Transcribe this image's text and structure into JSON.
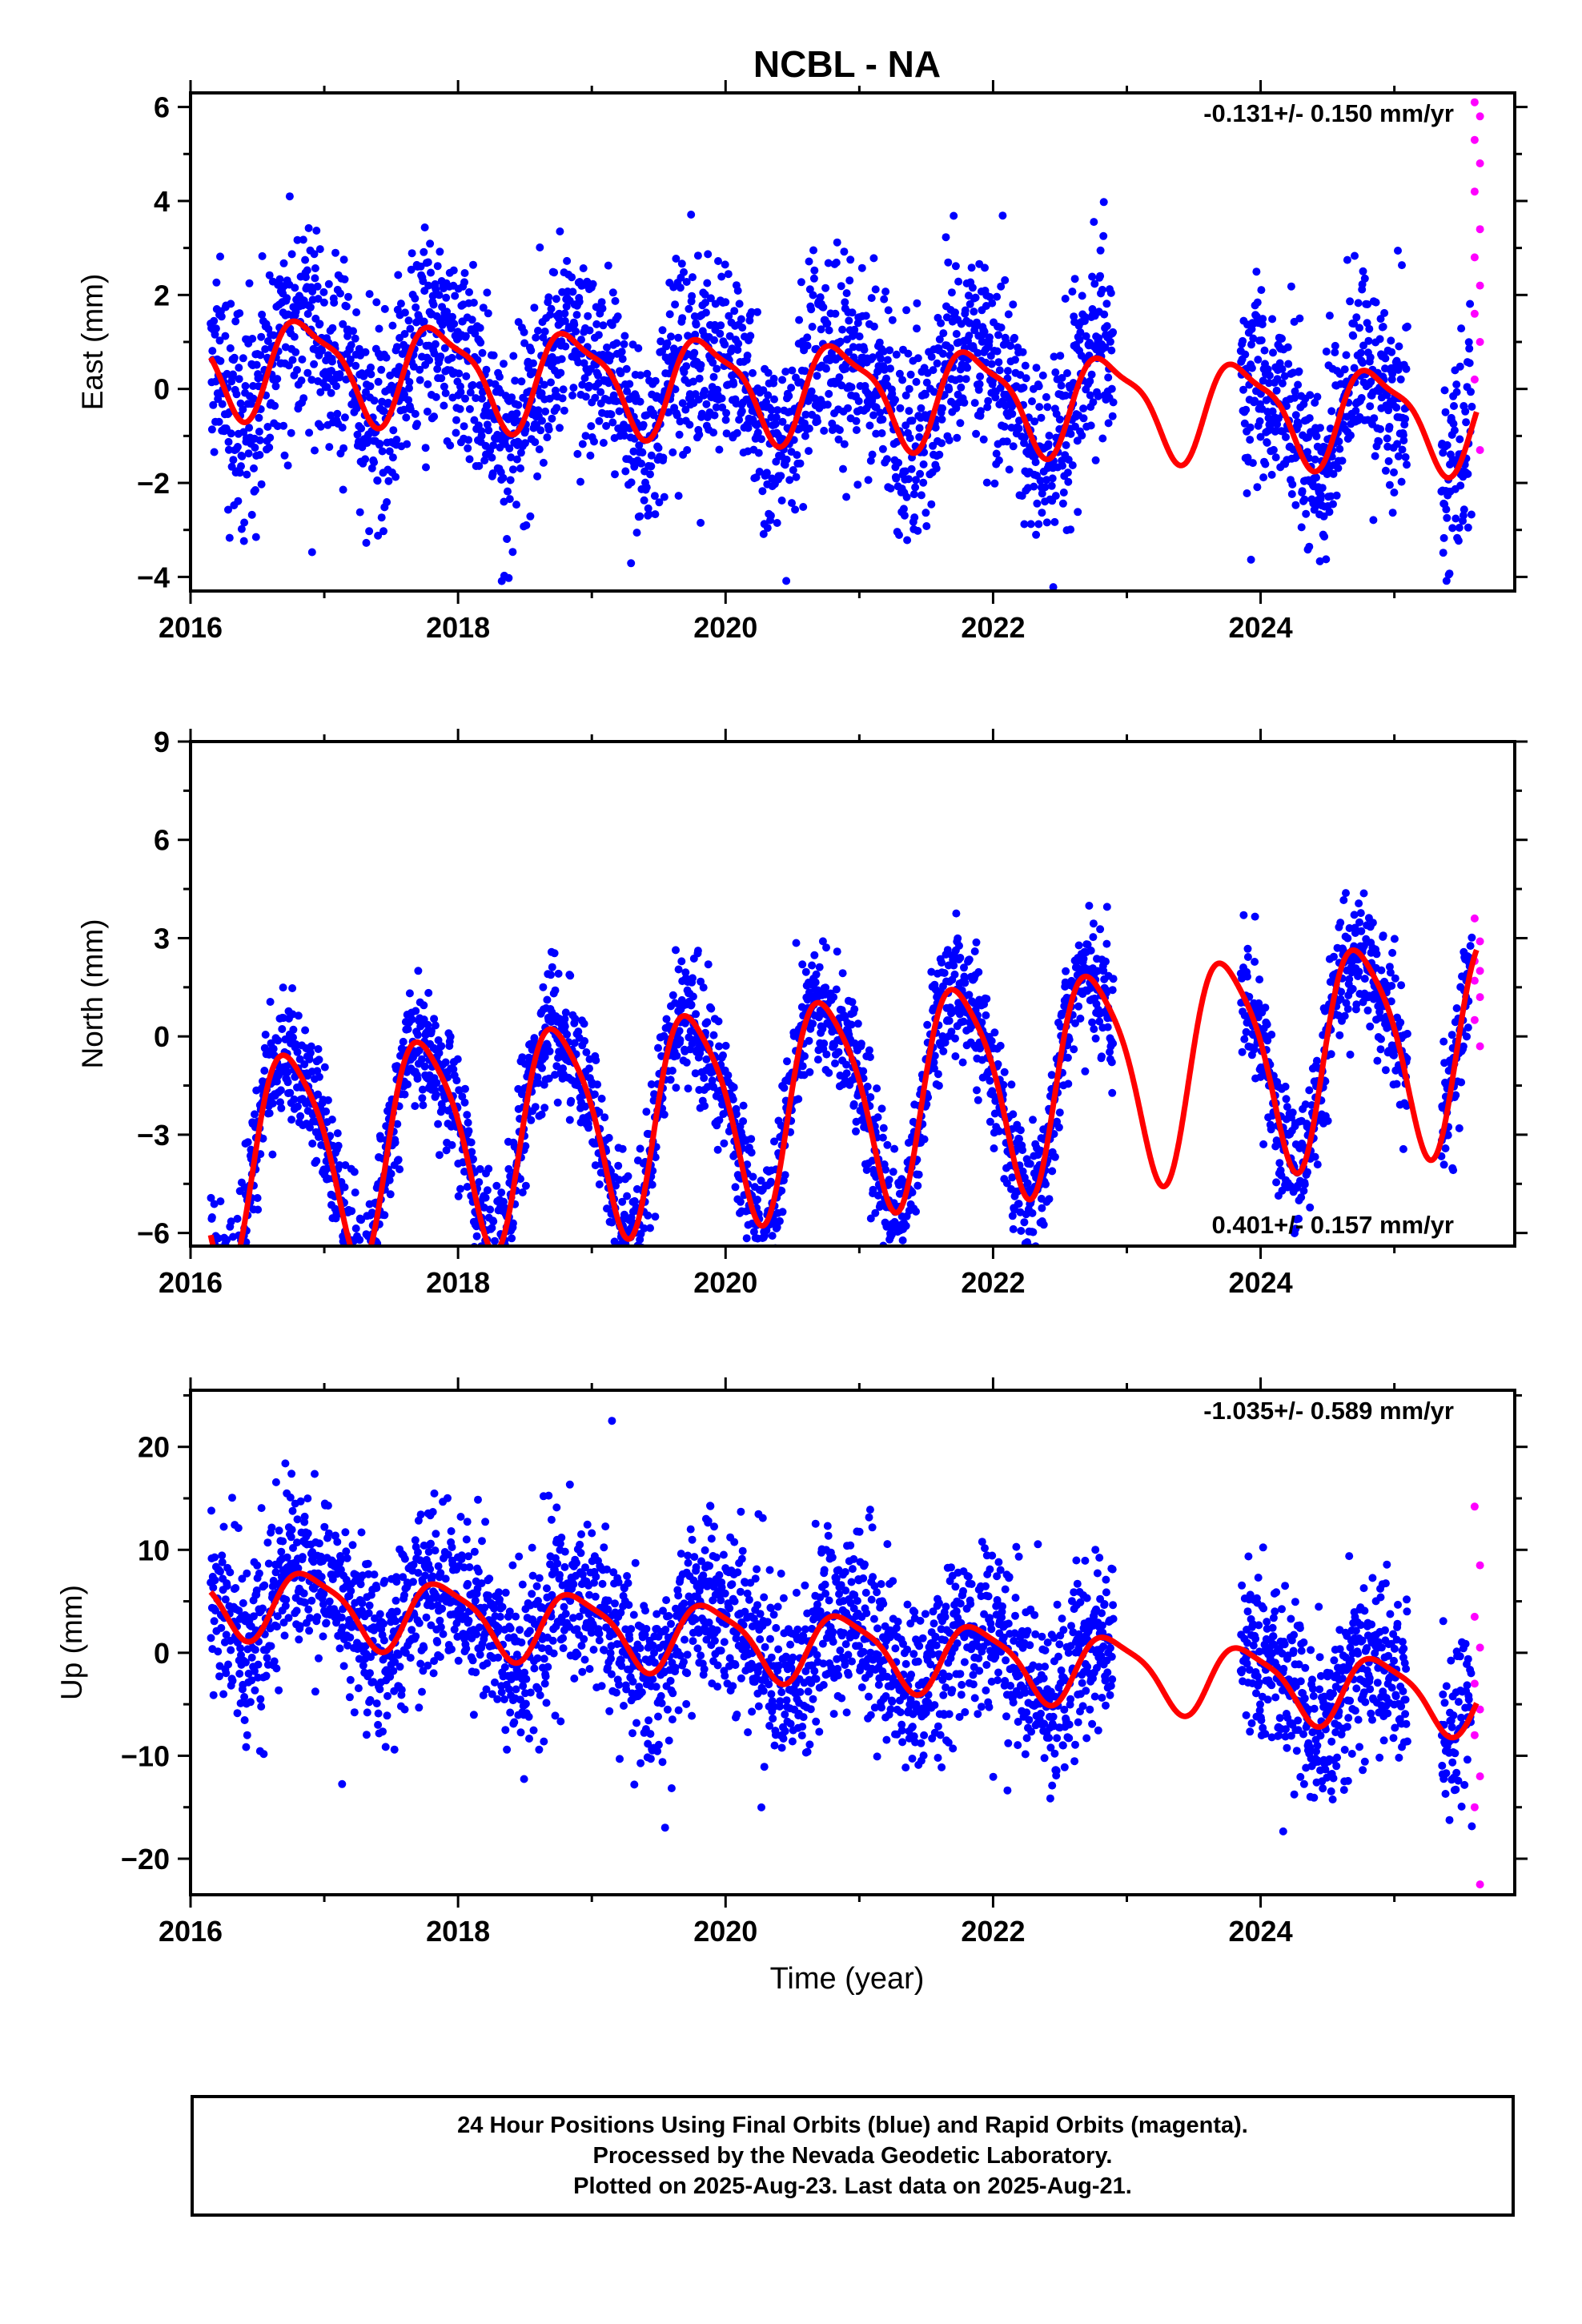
{
  "title": "NCBL - NA",
  "xlabel": "Time (year)",
  "caption": [
    "24 Hour Positions Using Final Orbits (blue) and Rapid Orbits (magenta).",
    "Processed by the Nevada Geodetic Laboratory.",
    "Plotted on 2025-Aug-23. Last data on 2025-Aug-21."
  ],
  "colors": {
    "final_orbits": "#0000ff",
    "rapid_orbits": "#ff00ff",
    "model_fit": "#ff0000",
    "frame": "#000000"
  },
  "chart_data": [
    {
      "type": "scatter",
      "title": "NCBL - NA",
      "ylabel": "East (mm)",
      "xlabel": "",
      "xlim": [
        2016.0,
        2025.9
      ],
      "ylim": [
        -4.3,
        6.3
      ],
      "xticks": [
        "2016",
        "2018",
        "2020",
        "2022",
        "2024"
      ],
      "yticks": [
        "−4",
        "−2",
        "0",
        "2",
        "4",
        "6"
      ],
      "ytick_values": [
        -4,
        -2,
        0,
        2,
        4,
        6
      ],
      "annotation": "-0.131+/- 0.150 mm/yr",
      "annotation_position": "top-right",
      "model": {
        "rate": -0.131,
        "offset": 0.6,
        "amplitude": 1.0,
        "phase": 0.62,
        "amp2": 0.3,
        "noise": 1.05
      },
      "series": [
        {
          "name": "Final Orbits (blue)",
          "x_range": [
            2016.15,
            2025.58
          ],
          "gaps": [
            [
              2022.9,
              2023.85
            ],
            [
              2025.1,
              2025.35
            ]
          ]
        },
        {
          "name": "Rapid Orbits (magenta)",
          "x_range": [
            2025.6,
            2025.64
          ],
          "y_values": [
            6.1,
            5.8,
            5.3,
            4.8,
            4.2,
            3.4,
            2.8,
            2.2,
            1.6,
            1.0,
            0.2,
            -1.3
          ]
        }
      ]
    },
    {
      "type": "scatter",
      "ylabel": "North (mm)",
      "xlabel": "",
      "xlim": [
        2016.0,
        2025.9
      ],
      "ylim": [
        -6.4,
        9.0
      ],
      "xticks": [
        "2016",
        "2018",
        "2020",
        "2022",
        "2024"
      ],
      "yticks": [
        "−6",
        "−3",
        "0",
        "3",
        "6",
        "9"
      ],
      "ytick_values": [
        -6,
        -3,
        0,
        3,
        6,
        9
      ],
      "annotation": "0.401+/- 0.157 mm/yr",
      "annotation_position": "bottom-right",
      "model": {
        "rate": 0.401,
        "offset": -3.8,
        "amplitude": 3.2,
        "phase": 0.5,
        "amp2": 0.6,
        "noise": 0.95
      },
      "series": [
        {
          "name": "Final Orbits (blue)",
          "x_range": [
            2016.15,
            2025.58
          ],
          "gaps": [
            [
              2022.9,
              2023.85
            ],
            [
              2025.1,
              2025.35
            ]
          ]
        },
        {
          "name": "Rapid Orbits (magenta)",
          "x_range": [
            2025.6,
            2025.64
          ],
          "y_values": [
            3.6,
            2.9,
            2.3,
            2.0,
            1.7,
            1.2,
            0.5,
            -0.3
          ]
        }
      ]
    },
    {
      "type": "scatter",
      "ylabel": "Up (mm)",
      "xlabel": "Time (year)",
      "xlim": [
        2016.0,
        2025.9
      ],
      "ylim": [
        -23.5,
        25.5
      ],
      "xticks": [
        "2016",
        "2018",
        "2020",
        "2022",
        "2024"
      ],
      "yticks": [
        "−20",
        "−10",
        "0",
        "10",
        "20"
      ],
      "ytick_values": [
        -20,
        -10,
        0,
        10,
        20
      ],
      "annotation": "-1.035+/- 0.589 mm/yr",
      "annotation_position": "top-right",
      "model": {
        "rate": -1.035,
        "offset": 5.5,
        "amplitude": 3.3,
        "phase": 0.65,
        "amp2": 0.8,
        "noise": 4.2
      },
      "series": [
        {
          "name": "Final Orbits (blue)",
          "x_range": [
            2016.15,
            2025.58
          ],
          "gaps": [
            [
              2022.9,
              2023.85
            ],
            [
              2025.1,
              2025.35
            ]
          ]
        },
        {
          "name": "Rapid Orbits (magenta)",
          "x_range": [
            2025.6,
            2025.64
          ],
          "y_values": [
            14.2,
            8.5,
            3.5,
            0.5,
            -3.0,
            -5.5,
            -8.0,
            -12.0,
            -15.0,
            -22.5
          ]
        }
      ]
    }
  ]
}
